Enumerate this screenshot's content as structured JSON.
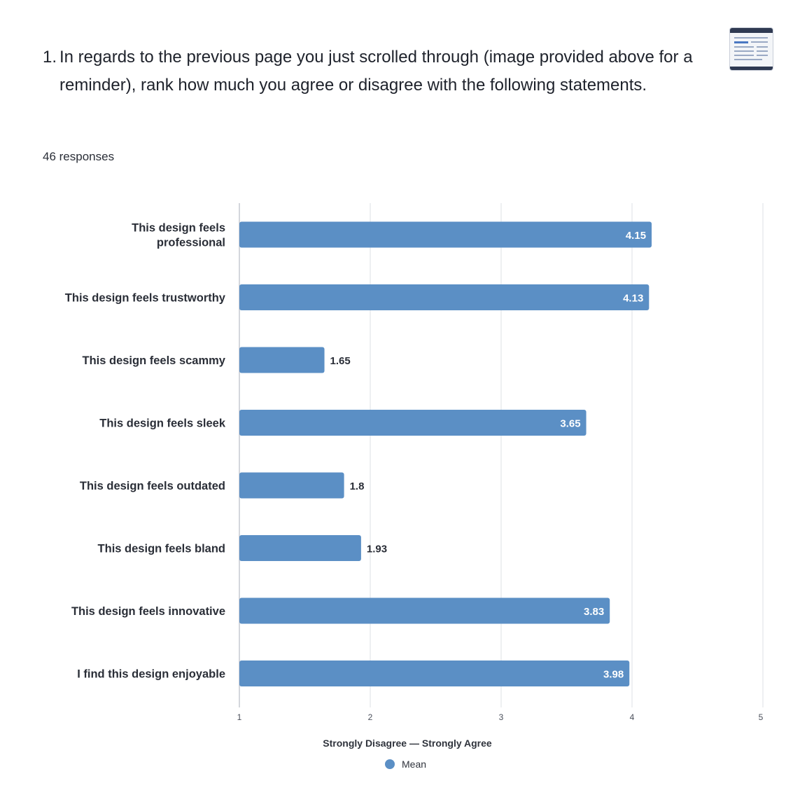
{
  "question": {
    "number": "1.",
    "text": "In regards to the previous page you just scrolled through (image provided above for a reminder), rank how much you agree or disagree with the following statements."
  },
  "responses_label": "46 responses",
  "thumbnail_icon": "page-screenshot-thumbnail",
  "colors": {
    "bar": "#5b8fc5",
    "grid": "#e3e6ea",
    "axis": "#b8bcc4",
    "label": "#2a2e37"
  },
  "chart_data": {
    "type": "bar",
    "orientation": "horizontal",
    "categories": [
      "This design feels professional",
      "This design feels trustworthy",
      "This design feels scammy",
      "This design feels sleek",
      "This design feels outdated",
      "This design feels bland",
      "This design feels innovative",
      "I find this design enjoyable"
    ],
    "category_lines": [
      [
        "This design feels",
        "professional"
      ],
      [
        "This design feels trustworthy"
      ],
      [
        "This design feels scammy"
      ],
      [
        "This design feels sleek"
      ],
      [
        "This design feels outdated"
      ],
      [
        "This design feels bland"
      ],
      [
        "This design feels innovative"
      ],
      [
        "I find this design enjoyable"
      ]
    ],
    "series": [
      {
        "name": "Mean",
        "values": [
          4.15,
          4.13,
          1.65,
          3.65,
          1.8,
          1.93,
          3.83,
          3.98
        ],
        "value_labels": [
          "4.15",
          "4.13",
          "1.65",
          "3.65",
          "1.8",
          "1.93",
          "3.83",
          "3.98"
        ]
      }
    ],
    "xlabel": "Strongly Disagree — Strongly Agree",
    "xlim": [
      1,
      5
    ],
    "xticks": [
      "1",
      "2",
      "3",
      "4",
      "5"
    ],
    "grid": true,
    "legend_position": "bottom-center"
  }
}
